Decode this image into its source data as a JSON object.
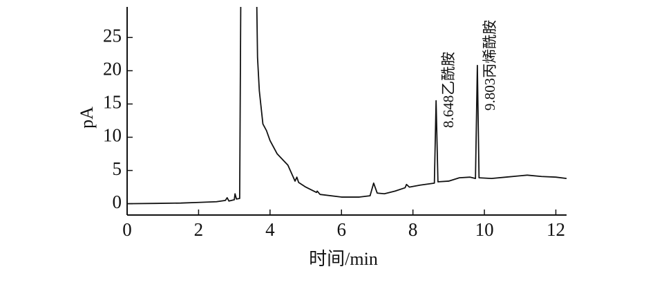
{
  "chart_data": {
    "type": "line",
    "x_label": "时间/min",
    "y_label": "pA",
    "annotations": [
      "8.648乙酰胺",
      "9.803丙烯酰胺"
    ],
    "xlim": [
      0,
      12.3
    ],
    "ylim": [
      -1.7,
      29.6
    ],
    "xticks": [
      0,
      2,
      4,
      6,
      8,
      10,
      12
    ],
    "yticks": [
      0,
      5,
      10,
      15,
      20,
      25
    ],
    "grid": false,
    "series": [
      {
        "color": "#111111",
        "x": [
          0,
          0.8,
          1.5,
          2.0,
          2.5,
          2.75,
          2.8,
          2.85,
          3.0,
          3.02,
          3.06,
          3.15,
          3.18,
          3.4,
          3.63,
          3.65,
          3.7,
          3.8,
          3.9,
          4.0,
          4.2,
          4.5,
          4.7,
          4.75,
          4.8,
          5.0,
          5.3,
          5.32,
          5.4,
          6.0,
          6.5,
          6.8,
          6.9,
          7.0,
          7.2,
          7.5,
          7.78,
          7.82,
          7.9,
          8.2,
          8.6,
          8.648,
          8.7,
          9.0,
          9.3,
          9.6,
          9.75,
          9.803,
          9.85,
          10.2,
          10.6,
          11.0,
          11.2,
          11.6,
          12.0,
          12.3
        ],
        "values": [
          0,
          0.05,
          0.1,
          0.2,
          0.3,
          0.5,
          0.9,
          0.4,
          0.6,
          1.5,
          0.7,
          0.8,
          29.6,
          null,
          29.6,
          22,
          17,
          12,
          11,
          9.5,
          7.5,
          5.8,
          3.4,
          4.0,
          3.2,
          2.5,
          1.7,
          1.9,
          1.4,
          1.0,
          1.0,
          1.2,
          3.1,
          1.6,
          1.5,
          1.9,
          2.4,
          2.9,
          2.5,
          2.8,
          3.1,
          15.5,
          3.3,
          3.4,
          3.9,
          4.0,
          3.8,
          20.8,
          3.9,
          3.8,
          4.0,
          4.2,
          4.3,
          4.1,
          4.0,
          3.8
        ]
      }
    ]
  }
}
